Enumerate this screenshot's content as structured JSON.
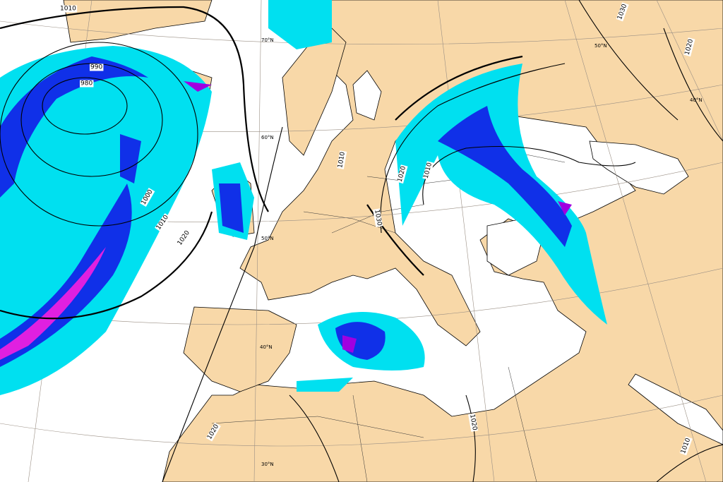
{
  "isobar_labels": [
    "1010",
    "990",
    "980",
    "1000",
    "1010",
    "1020",
    "1010",
    "1020",
    "1010",
    "1030",
    "1030",
    "1020",
    "1020",
    "1020",
    "1010"
  ],
  "latitude_labels": [
    "70°N",
    "60°N",
    "50°N",
    "40°N",
    "30°N",
    "50°N",
    "40°N"
  ]
}
